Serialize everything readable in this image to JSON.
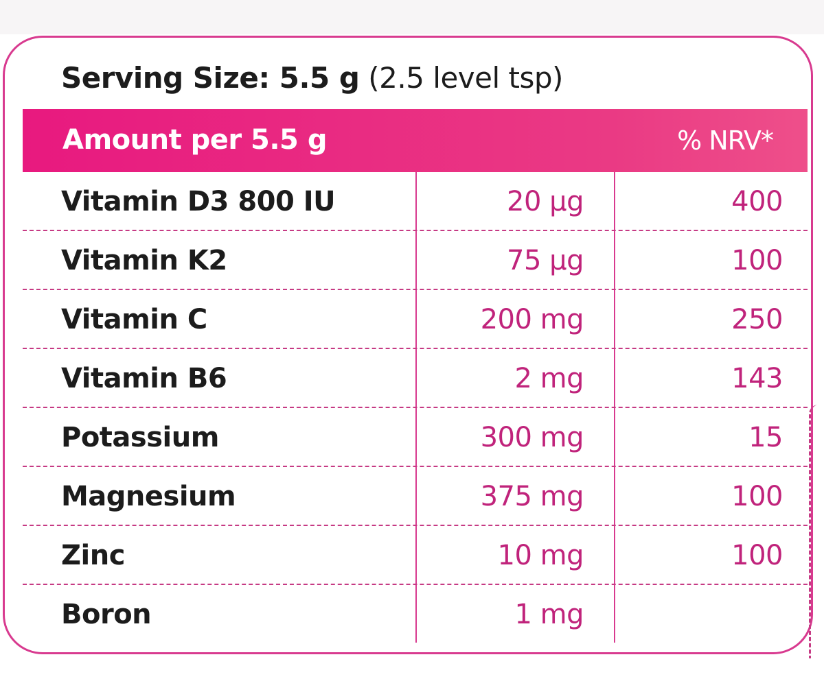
{
  "serving": {
    "label": "Serving Size: 5.5 g",
    "note": "(2.5 level tsp)"
  },
  "header": {
    "amount_label": "Amount per 5.5 g",
    "nrv_label": "% NRV*"
  },
  "nutrients": [
    {
      "name": "Vitamin D3 800 IU",
      "amount": "20 µg",
      "nrv": "400"
    },
    {
      "name": "Vitamin K2",
      "amount": "75 µg",
      "nrv": "100"
    },
    {
      "name": "Vitamin C",
      "amount": "200 mg",
      "nrv": "250"
    },
    {
      "name": "Vitamin B6",
      "amount": "2 mg",
      "nrv": "143"
    },
    {
      "name": "Potassium",
      "amount": "300 mg",
      "nrv": "15"
    },
    {
      "name": "Magnesium",
      "amount": "375 mg",
      "nrv": "100"
    },
    {
      "name": "Zinc",
      "amount": "10 mg",
      "nrv": "100"
    },
    {
      "name": "Boron",
      "amount": "1 mg",
      "nrv": ""
    }
  ],
  "colors": {
    "accent": "#e8197f",
    "border": "#d83a8f",
    "value_text": "#c0237b",
    "name_text": "#1c1c1c"
  }
}
